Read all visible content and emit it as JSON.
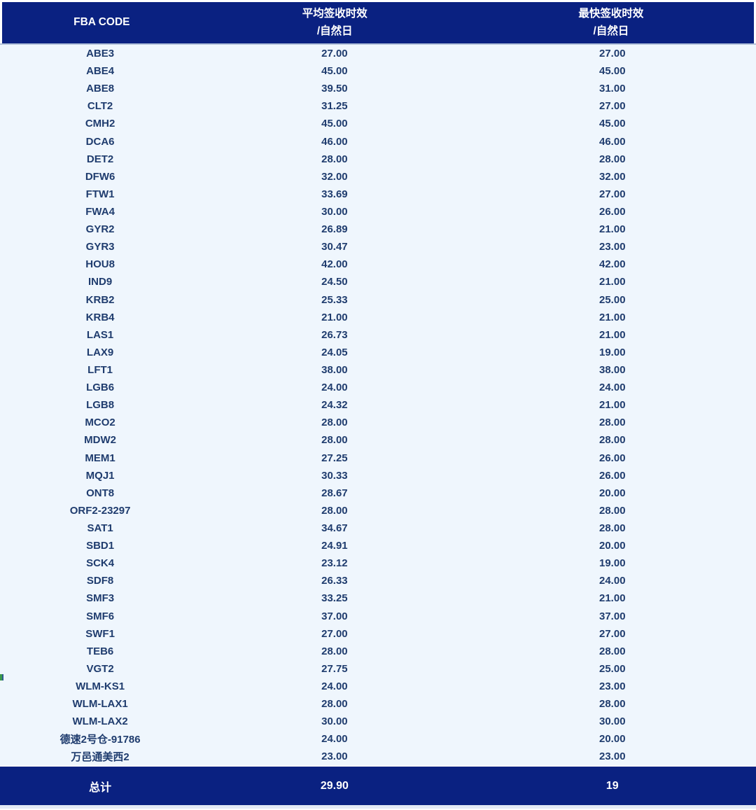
{
  "colors": {
    "header_bg": "#0A2181",
    "footer_bg": "#0A2181",
    "body_bg": "#EFF6FD",
    "row_text": "#1F3C6E",
    "header_text": "#FFFFFF",
    "divider": "#B3C2DA"
  },
  "table": {
    "columns": [
      {
        "label": "FBA CODE",
        "line1": "FBA CODE",
        "line2": ""
      },
      {
        "label": "平均签收时效/自然日",
        "line1": "平均签收时效",
        "line2": "/自然日"
      },
      {
        "label": "最快签收时效/自然日",
        "line1": "最快签收时效",
        "line2": "/自然日"
      }
    ],
    "rows": [
      {
        "code": "ABE3",
        "avg": "27.00",
        "fastest": "27.00"
      },
      {
        "code": "ABE4",
        "avg": "45.00",
        "fastest": "45.00"
      },
      {
        "code": "ABE8",
        "avg": "39.50",
        "fastest": "31.00"
      },
      {
        "code": "CLT2",
        "avg": "31.25",
        "fastest": "27.00"
      },
      {
        "code": "CMH2",
        "avg": "45.00",
        "fastest": "45.00"
      },
      {
        "code": "DCA6",
        "avg": "46.00",
        "fastest": "46.00"
      },
      {
        "code": "DET2",
        "avg": "28.00",
        "fastest": "28.00"
      },
      {
        "code": "DFW6",
        "avg": "32.00",
        "fastest": "32.00"
      },
      {
        "code": "FTW1",
        "avg": "33.69",
        "fastest": "27.00"
      },
      {
        "code": "FWA4",
        "avg": "30.00",
        "fastest": "26.00"
      },
      {
        "code": "GYR2",
        "avg": "26.89",
        "fastest": "21.00"
      },
      {
        "code": "GYR3",
        "avg": "30.47",
        "fastest": "23.00"
      },
      {
        "code": "HOU8",
        "avg": "42.00",
        "fastest": "42.00"
      },
      {
        "code": "IND9",
        "avg": "24.50",
        "fastest": "21.00"
      },
      {
        "code": "KRB2",
        "avg": "25.33",
        "fastest": "25.00"
      },
      {
        "code": "KRB4",
        "avg": "21.00",
        "fastest": "21.00"
      },
      {
        "code": "LAS1",
        "avg": "26.73",
        "fastest": "21.00"
      },
      {
        "code": "LAX9",
        "avg": "24.05",
        "fastest": "19.00"
      },
      {
        "code": "LFT1",
        "avg": "38.00",
        "fastest": "38.00"
      },
      {
        "code": "LGB6",
        "avg": "24.00",
        "fastest": "24.00"
      },
      {
        "code": "LGB8",
        "avg": "24.32",
        "fastest": "21.00"
      },
      {
        "code": "MCO2",
        "avg": "28.00",
        "fastest": "28.00"
      },
      {
        "code": "MDW2",
        "avg": "28.00",
        "fastest": "28.00"
      },
      {
        "code": "MEM1",
        "avg": "27.25",
        "fastest": "26.00"
      },
      {
        "code": "MQJ1",
        "avg": "30.33",
        "fastest": "26.00"
      },
      {
        "code": "ONT8",
        "avg": "28.67",
        "fastest": "20.00"
      },
      {
        "code": "ORF2-23297",
        "avg": "28.00",
        "fastest": "28.00"
      },
      {
        "code": "SAT1",
        "avg": "34.67",
        "fastest": "28.00"
      },
      {
        "code": "SBD1",
        "avg": "24.91",
        "fastest": "20.00"
      },
      {
        "code": "SCK4",
        "avg": "23.12",
        "fastest": "19.00"
      },
      {
        "code": "SDF8",
        "avg": "26.33",
        "fastest": "24.00"
      },
      {
        "code": "SMF3",
        "avg": "33.25",
        "fastest": "21.00"
      },
      {
        "code": "SMF6",
        "avg": "37.00",
        "fastest": "37.00"
      },
      {
        "code": "SWF1",
        "avg": "27.00",
        "fastest": "27.00"
      },
      {
        "code": "TEB6",
        "avg": "28.00",
        "fastest": "28.00"
      },
      {
        "code": "VGT2",
        "avg": "27.75",
        "fastest": "25.00"
      },
      {
        "code": "WLM-KS1",
        "avg": "24.00",
        "fastest": "23.00"
      },
      {
        "code": "WLM-LAX1",
        "avg": "28.00",
        "fastest": "28.00"
      },
      {
        "code": "WLM-LAX2",
        "avg": "30.00",
        "fastest": "30.00"
      },
      {
        "code": "德速2号仓-91786",
        "avg": "24.00",
        "fastest": "20.00"
      },
      {
        "code": "万邑通美西2",
        "avg": "23.00",
        "fastest": "23.00"
      }
    ],
    "footer": {
      "label": "总计",
      "avg": "29.90",
      "fastest": "19"
    }
  },
  "chart_data": {
    "type": "table",
    "title": "",
    "columns": [
      "FBA CODE",
      "平均签收时效/自然日",
      "最快签收时效/自然日"
    ],
    "categories": [
      "ABE3",
      "ABE4",
      "ABE8",
      "CLT2",
      "CMH2",
      "DCA6",
      "DET2",
      "DFW6",
      "FTW1",
      "FWA4",
      "GYR2",
      "GYR3",
      "HOU8",
      "IND9",
      "KRB2",
      "KRB4",
      "LAS1",
      "LAX9",
      "LFT1",
      "LGB6",
      "LGB8",
      "MCO2",
      "MDW2",
      "MEM1",
      "MQJ1",
      "ONT8",
      "ORF2-23297",
      "SAT1",
      "SBD1",
      "SCK4",
      "SDF8",
      "SMF3",
      "SMF6",
      "SWF1",
      "TEB6",
      "VGT2",
      "WLM-KS1",
      "WLM-LAX1",
      "WLM-LAX2",
      "德速2号仓-91786",
      "万邑通美西2"
    ],
    "series": [
      {
        "name": "平均签收时效/自然日",
        "values": [
          27.0,
          45.0,
          39.5,
          31.25,
          45.0,
          46.0,
          28.0,
          32.0,
          33.69,
          30.0,
          26.89,
          30.47,
          42.0,
          24.5,
          25.33,
          21.0,
          26.73,
          24.05,
          38.0,
          24.0,
          24.32,
          28.0,
          28.0,
          27.25,
          30.33,
          28.67,
          28.0,
          34.67,
          24.91,
          23.12,
          26.33,
          33.25,
          37.0,
          27.0,
          28.0,
          27.75,
          24.0,
          28.0,
          30.0,
          24.0,
          23.0
        ]
      },
      {
        "name": "最快签收时效/自然日",
        "values": [
          27.0,
          45.0,
          31.0,
          27.0,
          45.0,
          46.0,
          28.0,
          32.0,
          27.0,
          26.0,
          21.0,
          23.0,
          42.0,
          21.0,
          25.0,
          21.0,
          21.0,
          19.0,
          38.0,
          24.0,
          21.0,
          28.0,
          28.0,
          26.0,
          26.0,
          20.0,
          28.0,
          28.0,
          20.0,
          19.0,
          24.0,
          21.0,
          37.0,
          27.0,
          28.0,
          25.0,
          23.0,
          28.0,
          30.0,
          20.0,
          23.0
        ]
      }
    ],
    "totals": {
      "label": "总计",
      "平均签收时效/自然日": 29.9,
      "最快签收时效/自然日": 19
    }
  }
}
